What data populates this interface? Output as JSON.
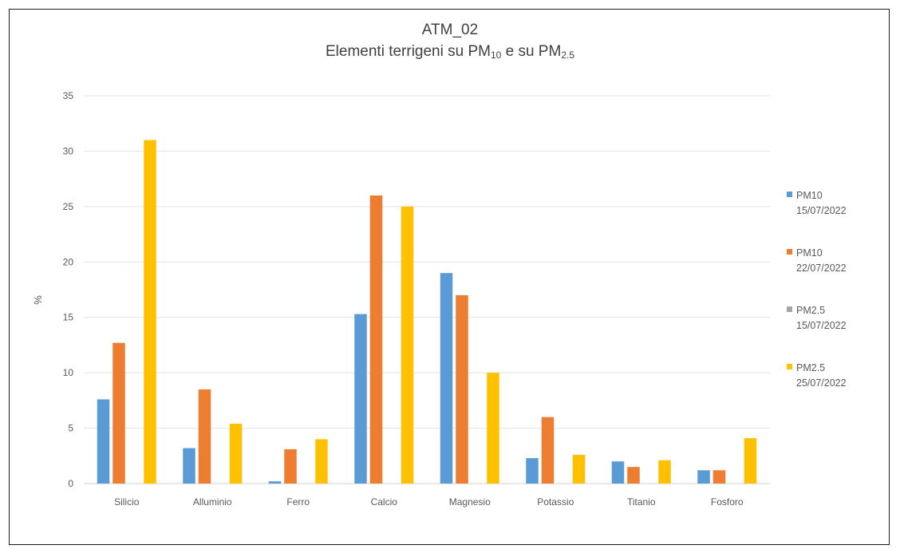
{
  "chart_data": {
    "type": "bar",
    "title": "ATM_02",
    "subtitle": {
      "prefix": "Elementi terrigeni su PM",
      "sub1": "10",
      "middle": " e su PM",
      "sub2": "2.5"
    },
    "ylabel": "%",
    "xlabel": "",
    "ylim": [
      0,
      35
    ],
    "yticks": [
      0,
      5,
      10,
      15,
      20,
      25,
      30,
      35
    ],
    "grid": true,
    "legend_position": "right",
    "categories": [
      "Silicio",
      "Alluminio",
      "Ferro",
      "Calcio",
      "Magnesio",
      "Potassio",
      "Titanio",
      "Fosforo"
    ],
    "series": [
      {
        "name": "PM10\n15/07/2022",
        "color": "#5B9BD5",
        "values": [
          7.6,
          3.2,
          0.2,
          15.3,
          19.0,
          2.3,
          2.0,
          1.2
        ]
      },
      {
        "name": "PM10\n22/07/2022",
        "color": "#ED7D31",
        "values": [
          12.7,
          8.5,
          3.1,
          26.0,
          17.0,
          6.0,
          1.5,
          1.2
        ]
      },
      {
        "name": "PM2.5\n15/07/2022",
        "color": "#A5A5A5",
        "values": [
          0,
          0,
          0,
          0,
          0,
          0,
          0,
          0
        ]
      },
      {
        "name": "PM2.5\n25/07/2022",
        "color": "#FFC000",
        "values": [
          31.0,
          5.4,
          4.0,
          25.0,
          10.0,
          2.6,
          2.1,
          4.1
        ]
      }
    ]
  }
}
